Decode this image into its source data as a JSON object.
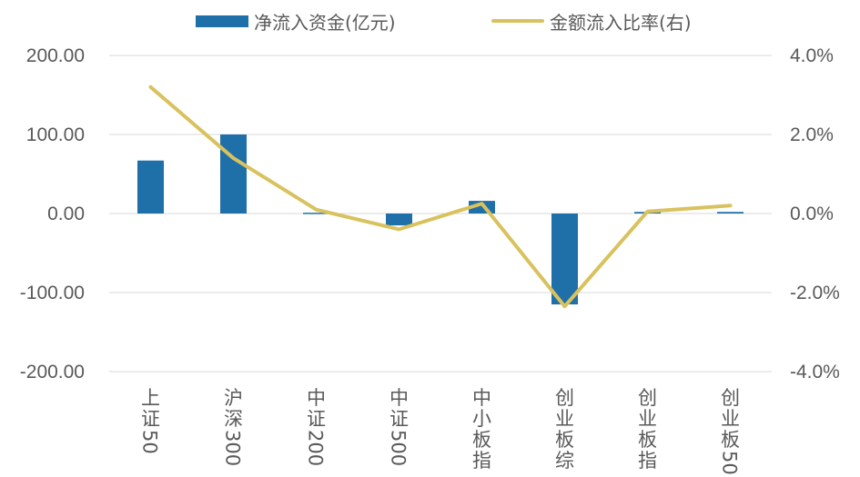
{
  "legend": {
    "bar_label": "净流入资金(亿元)",
    "line_label": "金额流入比率(右)"
  },
  "colors": {
    "bar": "#1F6FA8",
    "line": "#D9C25E",
    "grid": "#D9D9D9",
    "text": "#595959"
  },
  "chart_data": {
    "type": "bar",
    "title": "",
    "categories": [
      "上证50",
      "沪深300",
      "中证200",
      "中证500",
      "中小板指",
      "创业板综",
      "创业板指",
      "创业板50"
    ],
    "series": [
      {
        "name": "净流入资金(亿元)",
        "type": "bar",
        "axis": "left",
        "values": [
          67,
          100,
          1,
          -15,
          16,
          -115,
          2,
          2
        ]
      },
      {
        "name": "金额流入比率(右)",
        "type": "line",
        "axis": "right",
        "values": [
          3.2,
          1.4,
          0.1,
          -0.4,
          0.25,
          -2.35,
          0.05,
          0.2
        ]
      }
    ],
    "y_left": {
      "min": -200,
      "max": 200,
      "ticks": [
        200,
        100,
        0,
        -100,
        -200
      ],
      "tick_labels": [
        "200.00",
        "100.00",
        "0.00",
        "-100.00",
        "-200.00"
      ]
    },
    "y_right": {
      "min": -4,
      "max": 4,
      "ticks": [
        4,
        2,
        0,
        -2,
        -4
      ],
      "tick_labels": [
        "4.0%",
        "2.0%",
        "0.0%",
        "-2.0%",
        "-4.0%"
      ]
    },
    "grid": true,
    "legend_position": "top"
  }
}
